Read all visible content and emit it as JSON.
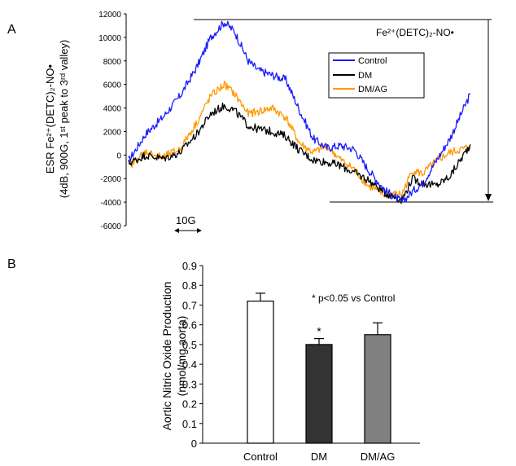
{
  "panels": {
    "a": "A",
    "b": "B"
  },
  "chart_data": [
    {
      "type": "line",
      "ylabel": [
        "ESR Fe²⁺(DETC)₂-NO•",
        "(4dB, 900G, 1ˢᵗ peak to 3ʳᵈ valley)"
      ],
      "ylim": [
        -6000,
        12000
      ],
      "yticks": [
        12000,
        10000,
        8000,
        6000,
        4000,
        2000,
        0,
        -2000,
        -4000,
        -6000
      ],
      "yticks_text": [
        "12000",
        "10000",
        "8000",
        "6000",
        "4000",
        "2000",
        "0",
        "-2000",
        "-4000",
        "-6000"
      ],
      "annotation": "Fe²⁺(DETC)₂-NO•",
      "scale_bar": "10G",
      "legend_placement": "top-right",
      "x_range": [
        0,
        100
      ],
      "series": [
        {
          "name": "Control",
          "color": "#1a1aff",
          "x": [
            0,
            5,
            10,
            15,
            20,
            24,
            28,
            31,
            35,
            38,
            42,
            46,
            50,
            54,
            58,
            62,
            66,
            70,
            75,
            80,
            83,
            86,
            90,
            94,
            100
          ],
          "y": [
            -500,
            1800,
            3200,
            5000,
            7500,
            10000,
            11300,
            10500,
            8000,
            7200,
            6800,
            6400,
            3800,
            1400,
            600,
            800,
            500,
            -1200,
            -3000,
            -4000,
            -3100,
            -2400,
            -500,
            1400,
            5200
          ]
        },
        {
          "name": "DM",
          "color": "#000000",
          "x": [
            0,
            5,
            10,
            15,
            20,
            24,
            28,
            31,
            35,
            38,
            42,
            46,
            50,
            54,
            58,
            62,
            66,
            70,
            75,
            80,
            83,
            86,
            90,
            94,
            100
          ],
          "y": [
            -700,
            0,
            -300,
            200,
            1800,
            3500,
            4200,
            3800,
            2500,
            2200,
            2000,
            1600,
            400,
            -400,
            -600,
            -900,
            -1500,
            -2100,
            -3200,
            -3800,
            -2000,
            -2400,
            -2600,
            -1800,
            900
          ]
        },
        {
          "name": "DM/AG",
          "color": "#ff9900",
          "x": [
            0,
            5,
            10,
            15,
            20,
            24,
            28,
            31,
            35,
            38,
            42,
            46,
            50,
            54,
            58,
            62,
            66,
            70,
            75,
            80,
            83,
            86,
            90,
            94,
            100
          ],
          "y": [
            -1000,
            300,
            -200,
            500,
            2800,
            5000,
            6000,
            5200,
            3500,
            3700,
            4000,
            3200,
            1000,
            200,
            800,
            -400,
            -1200,
            -2600,
            -3400,
            -3300,
            -1300,
            -1600,
            -500,
            200,
            700
          ]
        }
      ]
    },
    {
      "type": "bar",
      "categories": [
        "Control",
        "DM",
        "DM/AG"
      ],
      "values": [
        0.72,
        0.5,
        0.55
      ],
      "errors": [
        0.04,
        0.03,
        0.06
      ],
      "colors": [
        "#ffffff",
        "#333333",
        "#808080"
      ],
      "ylabel": [
        "Aortic Nitric Oxide Production",
        "(nmol/mg aorta)"
      ],
      "ylim": [
        0,
        0.9
      ],
      "yticks": [
        0,
        0.1,
        0.2,
        0.3,
        0.4,
        0.5,
        0.6,
        0.7,
        0.8,
        0.9
      ],
      "yticks_text": [
        "0",
        "0.1",
        "0.2",
        "0.3",
        "0.4",
        "0.5",
        "0.6",
        "0.7",
        "0.8",
        "0.9"
      ],
      "significance_marks": [
        "",
        "*",
        ""
      ],
      "annotation": "* p<0.05 vs Control"
    }
  ]
}
